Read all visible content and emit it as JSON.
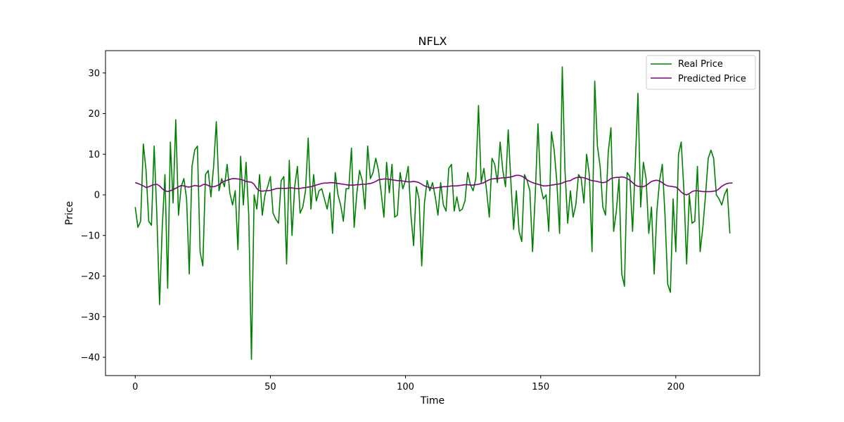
{
  "chart_data": {
    "type": "line",
    "title": "NFLX",
    "xlabel": "Time",
    "ylabel": "Price",
    "xlim": [
      -11,
      231
    ],
    "ylim": [
      -44.5,
      35.5
    ],
    "xticks": [
      0,
      50,
      100,
      150,
      200
    ],
    "yticks": [
      -40,
      -30,
      -20,
      -10,
      0,
      10,
      20,
      30
    ],
    "grid": false,
    "legend": "upper right",
    "series": [
      {
        "name": "Real Price",
        "color": "#008000",
        "values": [
          -3,
          -8,
          -6.5,
          12.5,
          6,
          -6.5,
          -7.5,
          12,
          -5,
          -27,
          -8,
          5,
          -23,
          13,
          -2,
          18.5,
          -5,
          2,
          4,
          -1,
          -19.5,
          7,
          11,
          12,
          -14,
          -17.5,
          5,
          6,
          -0.5,
          7,
          18,
          1,
          4,
          2,
          7.5,
          0.5,
          -2.5,
          1,
          -13.5,
          9.5,
          -2.5,
          8,
          -5,
          -40.5,
          0,
          -3.5,
          5,
          -5,
          0,
          2,
          4.5,
          -4.5,
          -6,
          -7,
          3.5,
          4.5,
          -17,
          8.5,
          -10,
          2,
          7,
          -4.5,
          -3,
          1,
          14,
          -3.5,
          5,
          -1.5,
          1,
          1.5,
          -1,
          -3.5,
          0.5,
          -9.5,
          5.5,
          0,
          -2.5,
          -6.5,
          1.5,
          1.5,
          11.5,
          -8,
          0.5,
          6,
          3.5,
          -3.5,
          12,
          4,
          5.5,
          9,
          6,
          0.5,
          -5.5,
          8,
          0.5,
          7.5,
          -5.5,
          -5,
          5.5,
          1.5,
          3.5,
          7,
          -5,
          -12.5,
          2,
          -1,
          -17.5,
          -2,
          3.5,
          1,
          3,
          -0.5,
          -5,
          3,
          -2.5,
          -4,
          6.5,
          7.5,
          -4,
          -0.5,
          -4,
          -3.5,
          -1.5,
          5.5,
          2.5,
          1,
          4,
          22,
          3,
          6.5,
          1,
          -5.5,
          9,
          7.5,
          3,
          13,
          6,
          2,
          16,
          3,
          -8.5,
          1,
          -9,
          -11.5,
          5,
          3.5,
          1,
          -14,
          0,
          17.5,
          2,
          -1,
          0,
          -9,
          15.5,
          11,
          3,
          -9.5,
          31.5,
          6,
          -7,
          1,
          -5.5,
          -2.5,
          5,
          4,
          -2,
          10,
          5,
          -14,
          28,
          12,
          7,
          -3,
          -5,
          10.5,
          16.5,
          -9,
          -4,
          4,
          -19.5,
          -22.5,
          5.5,
          4.5,
          -9,
          7.5,
          25,
          -3,
          8,
          4,
          -9.5,
          -3,
          -19.5,
          -4,
          3.5,
          7.5,
          -5,
          -22,
          -24,
          -1,
          -14,
          10,
          13,
          1,
          -17,
          0,
          -7,
          -6.5,
          7,
          -14,
          -8,
          0,
          9,
          11,
          9,
          0,
          -1,
          -2.5,
          0,
          1.5,
          -9.5
        ],
        "data_label": "",
        "unit": ""
      },
      {
        "name": "Predicted Price",
        "color": "#800080",
        "values": [
          3,
          2.8,
          2.5,
          2.2,
          1.8,
          2,
          2.3,
          2.5,
          2.6,
          2.2,
          1.5,
          1,
          0.8,
          1,
          1.3,
          1.6,
          2,
          2.3,
          2.2,
          2,
          1.9,
          2.1,
          2.3,
          2.2,
          2.1,
          2.5,
          2.6,
          2.3,
          2,
          2,
          2.2,
          2.5,
          3,
          3.4,
          3.6,
          3.8,
          4,
          4,
          3.9,
          3.8,
          3.6,
          3.3,
          3.2,
          3.1,
          2.6,
          1.5,
          1,
          0.9,
          1,
          1,
          1.1,
          1.3,
          1.5,
          1.6,
          1.6,
          1.6,
          1.6,
          1.7,
          1.7,
          1.6,
          1.5,
          1.6,
          1.7,
          1.8,
          1.9,
          2,
          2.2,
          2.4,
          2.6,
          2.8,
          2.9,
          2.9,
          3,
          3,
          2.9,
          2.8,
          2.7,
          2.6,
          2.5,
          2.4,
          2.4,
          2.4,
          2.5,
          2.5,
          2.6,
          2.6,
          2.7,
          2.8,
          3,
          3.3,
          3.7,
          3.8,
          3.9,
          3.9,
          3.8,
          3.7,
          3.6,
          3.5,
          3.5,
          3.4,
          3.3,
          3.2,
          3.2,
          3.3,
          3.2,
          3,
          2.6,
          2.2,
          2,
          1.8,
          1.6,
          1.7,
          1.8,
          1.9,
          2,
          2,
          2.1,
          2.2,
          2.2,
          2.2,
          2.3,
          2.4,
          2.5,
          2.5,
          2.4,
          2.4,
          2.5,
          2.6,
          2.8,
          3,
          3.4,
          3.7,
          3.9,
          4,
          4,
          4.1,
          4.2,
          4.2,
          4.3,
          4.4,
          4.6,
          4.8,
          4.8,
          4.6,
          4.2,
          3.7,
          3.3,
          3,
          2.8,
          2.6,
          2.4,
          2.2,
          2.2,
          2.3,
          2.4,
          2.5,
          2.6,
          2.7,
          2.9,
          3.2,
          3.4,
          3.5,
          3.9,
          4.2,
          4.3,
          4.3,
          4.2,
          4,
          3.7,
          3.5,
          3.4,
          3.3,
          3.1,
          3,
          3.1,
          3.5,
          4,
          4.2,
          4.3,
          4.3,
          4.4,
          4.3,
          4,
          3.6,
          3,
          2.4,
          2.1,
          2,
          2,
          2.3,
          2.8,
          3.3,
          3.5,
          3.6,
          3.4,
          3,
          2.5,
          2.2,
          2.1,
          2,
          1.9,
          1.4,
          0.7,
          0.2,
          0,
          0.3,
          0.8,
          1,
          1,
          0.9,
          0.8,
          0.8,
          0.8,
          0.8,
          0.9,
          1,
          1.5,
          2.1,
          2.5,
          2.8,
          2.9,
          2.9
        ],
        "data_label": "",
        "unit": ""
      }
    ]
  }
}
